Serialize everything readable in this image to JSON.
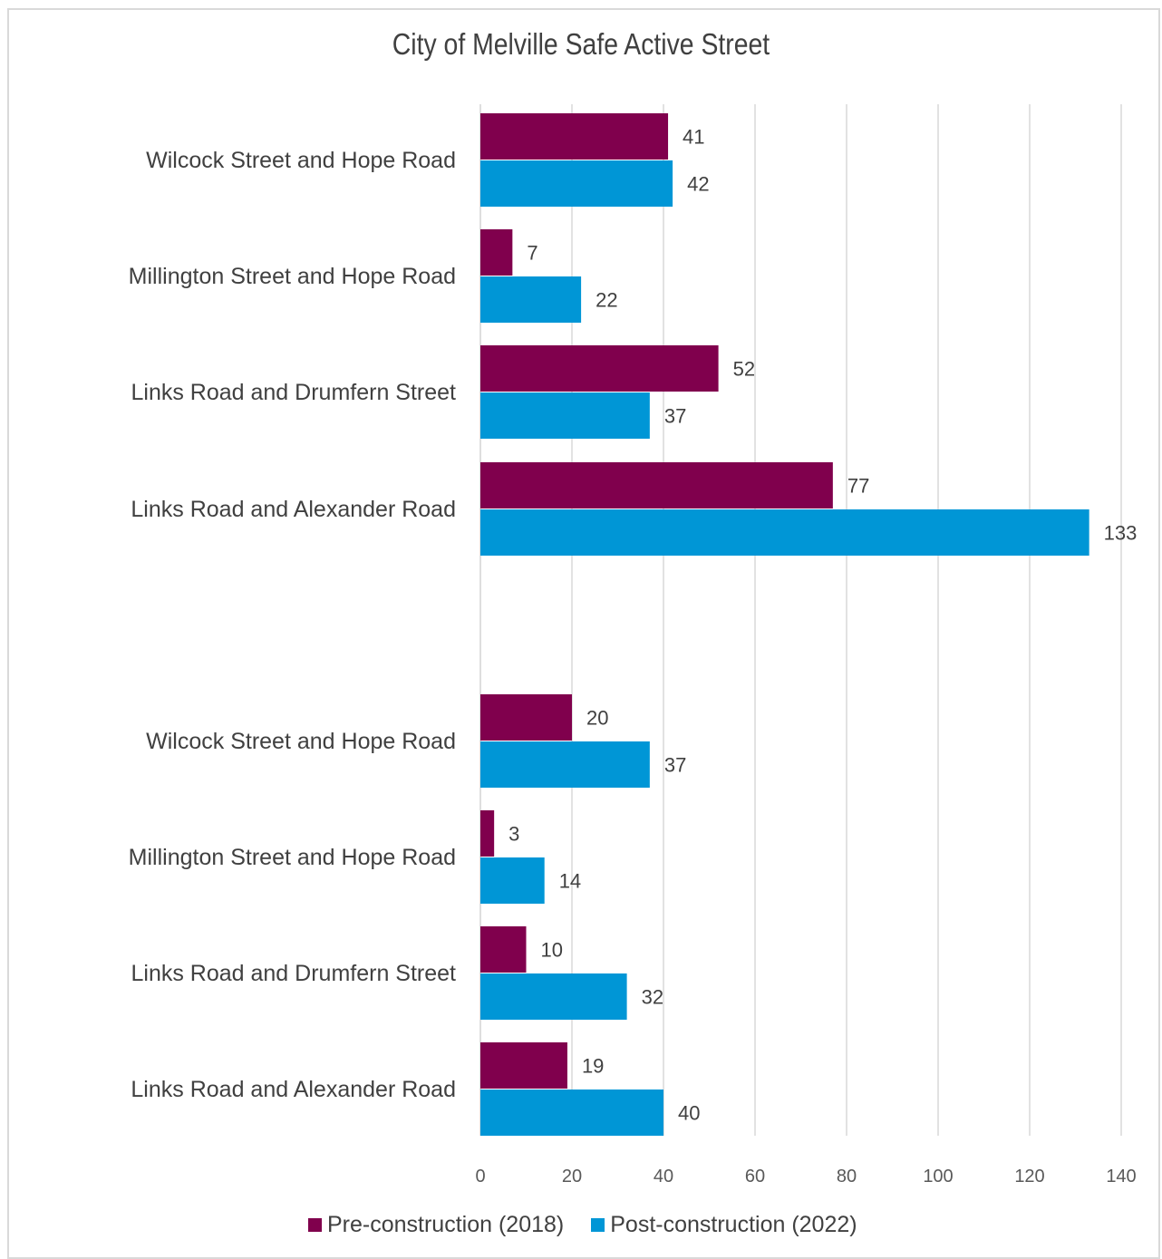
{
  "chart_data": {
    "type": "bar",
    "orientation": "horizontal",
    "title": "City of Melville Safe Active Street",
    "categories": [
      "Wilcock Street and Hope Road",
      "Millington Street and Hope Road",
      "Links Road and Drumfern Street",
      "Links Road and Alexander Road",
      "",
      "Wilcock Street and Hope Road",
      "Millington Street and Hope Road",
      "Links Road and Drumfern Street",
      "Links Road and Alexander Road"
    ],
    "series": [
      {
        "name": "Pre-construction (2018)",
        "color": "#80004d",
        "values": [
          41,
          7,
          52,
          77,
          null,
          20,
          3,
          10,
          19
        ]
      },
      {
        "name": "Post-construction (2022)",
        "color": "#0096d6",
        "values": [
          42,
          22,
          37,
          133,
          null,
          37,
          14,
          32,
          40
        ]
      }
    ],
    "xlim": [
      0,
      140
    ],
    "xticks": [
      0,
      20,
      40,
      60,
      80,
      100,
      120,
      140
    ],
    "grid": true,
    "legend": "bottom",
    "data_labels": true
  }
}
